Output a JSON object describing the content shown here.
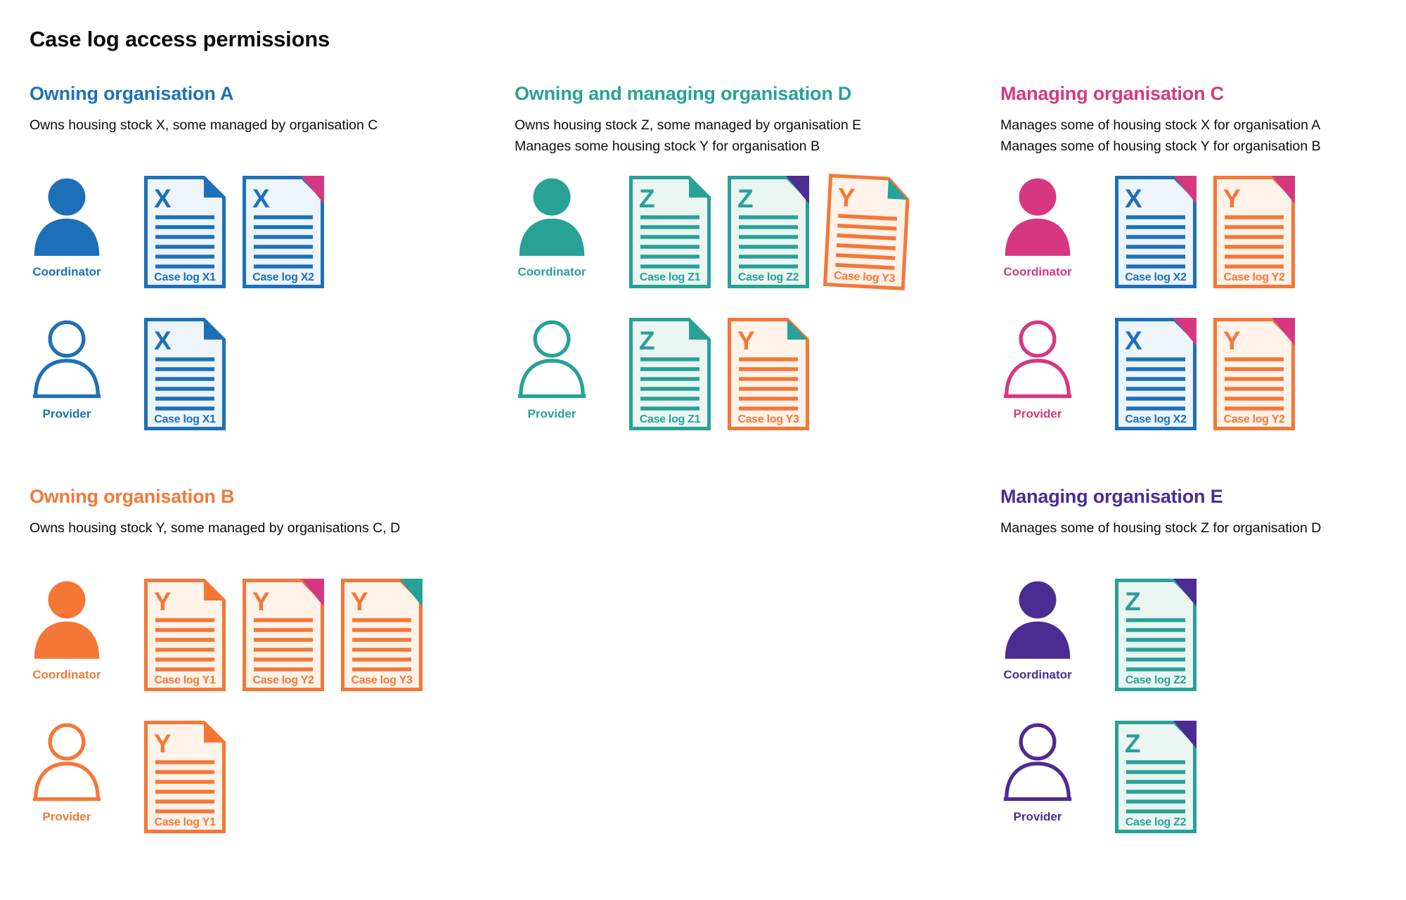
{
  "title": "Case log access permissions",
  "colors": {
    "blue": "#1d70b8",
    "teal": "#28a197",
    "pink": "#d53880",
    "orange": "#f47738",
    "purple": "#4c2c92",
    "text": "#0b0c0c",
    "blue_bg": "#edf4fb",
    "teal_bg": "#eaf5f2",
    "orange_bg": "#fef2e9"
  },
  "sections": [
    {
      "id": "owning-org-a",
      "heading": "Owning organisation A",
      "color": "blue",
      "description": [
        "Owns housing stock X, some managed by organisation C"
      ],
      "rows": [
        {
          "role": "Coordinator",
          "variant": "filled",
          "docs": [
            {
              "letter": "X",
              "label": "Case log X1",
              "color": "blue",
              "bg": "blue_bg",
              "corner": "blue",
              "style": "fold",
              "tilt": 0
            },
            {
              "letter": "X",
              "label": "Case log X2",
              "color": "blue",
              "bg": "blue_bg",
              "corner": "pink",
              "style": "solid",
              "tilt": 0
            }
          ]
        },
        {
          "role": "Provider",
          "variant": "outline",
          "docs": [
            {
              "letter": "X",
              "label": "Case log X1",
              "color": "blue",
              "bg": "blue_bg",
              "corner": "blue",
              "style": "fold",
              "tilt": 0
            }
          ]
        }
      ]
    },
    {
      "id": "owning-managing-org-d",
      "heading": "Owning and managing organisation D",
      "color": "teal",
      "description": [
        "Owns housing stock Z, some managed by organisation E",
        "Manages some housing stock Y for organisation B"
      ],
      "rows": [
        {
          "role": "Coordinator",
          "variant": "filled",
          "docs": [
            {
              "letter": "Z",
              "label": "Case log Z1",
              "color": "teal",
              "bg": "teal_bg",
              "corner": "teal",
              "style": "fold",
              "tilt": 0
            },
            {
              "letter": "Z",
              "label": "Case log Z2",
              "color": "teal",
              "bg": "teal_bg",
              "corner": "purple",
              "style": "solid",
              "tilt": 0
            },
            {
              "letter": "Y",
              "label": "Case log Y3",
              "color": "orange",
              "bg": "orange_bg",
              "corner": "teal",
              "style": "fold",
              "tilt": 3
            }
          ]
        },
        {
          "role": "Provider",
          "variant": "outline",
          "docs": [
            {
              "letter": "Z",
              "label": "Case log Z1",
              "color": "teal",
              "bg": "teal_bg",
              "corner": "teal",
              "style": "fold",
              "tilt": 0
            },
            {
              "letter": "Y",
              "label": "Case log Y3",
              "color": "orange",
              "bg": "orange_bg",
              "corner": "teal",
              "style": "fold",
              "tilt": 0
            }
          ]
        }
      ]
    },
    {
      "id": "managing-org-c",
      "heading": "Managing organisation C",
      "color": "pink",
      "description": [
        "Manages some of housing stock X for organisation A",
        "Manages some of housing stock Y for organisation B"
      ],
      "rows": [
        {
          "role": "Coordinator",
          "variant": "filled",
          "docs": [
            {
              "letter": "X",
              "label": "Case log X2",
              "color": "blue",
              "bg": "blue_bg",
              "corner": "pink",
              "style": "solid",
              "tilt": 0
            },
            {
              "letter": "Y",
              "label": "Case log Y2",
              "color": "orange",
              "bg": "orange_bg",
              "corner": "pink",
              "style": "solid",
              "tilt": 0
            }
          ]
        },
        {
          "role": "Provider",
          "variant": "outline",
          "docs": [
            {
              "letter": "X",
              "label": "Case log X2",
              "color": "blue",
              "bg": "blue_bg",
              "corner": "pink",
              "style": "solid",
              "tilt": 0
            },
            {
              "letter": "Y",
              "label": "Case log Y2",
              "color": "orange",
              "bg": "orange_bg",
              "corner": "pink",
              "style": "solid",
              "tilt": 0
            }
          ]
        }
      ]
    },
    {
      "id": "owning-org-b",
      "heading": "Owning organisation B",
      "color": "orange",
      "description": [
        "Owns housing stock Y, some managed by organisations C, D"
      ],
      "rows": [
        {
          "role": "Coordinator",
          "variant": "filled",
          "docs": [
            {
              "letter": "Y",
              "label": "Case log Y1",
              "color": "orange",
              "bg": "orange_bg",
              "corner": "orange",
              "style": "fold",
              "tilt": 0
            },
            {
              "letter": "Y",
              "label": "Case log Y2",
              "color": "orange",
              "bg": "orange_bg",
              "corner": "pink",
              "style": "solid",
              "tilt": 0
            },
            {
              "letter": "Y",
              "label": "Case log Y3",
              "color": "orange",
              "bg": "orange_bg",
              "corner": "teal",
              "style": "solid",
              "tilt": 0
            }
          ]
        },
        {
          "role": "Provider",
          "variant": "outline",
          "docs": [
            {
              "letter": "Y",
              "label": "Case log Y1",
              "color": "orange",
              "bg": "orange_bg",
              "corner": "orange",
              "style": "fold",
              "tilt": 0
            }
          ]
        }
      ]
    },
    {
      "id": "managing-org-e",
      "heading": "Managing organisation E",
      "color": "purple",
      "description": [
        "Manages some of housing stock Z for organisation D"
      ],
      "rows": [
        {
          "role": "Coordinator",
          "variant": "filled",
          "docs": [
            {
              "letter": "Z",
              "label": "Case log Z2",
              "color": "teal",
              "bg": "teal_bg",
              "corner": "purple",
              "style": "solid",
              "tilt": 0
            }
          ]
        },
        {
          "role": "Provider",
          "variant": "outline",
          "docs": [
            {
              "letter": "Z",
              "label": "Case log Z2",
              "color": "teal",
              "bg": "teal_bg",
              "corner": "purple",
              "style": "solid",
              "tilt": 0
            }
          ]
        }
      ]
    }
  ]
}
